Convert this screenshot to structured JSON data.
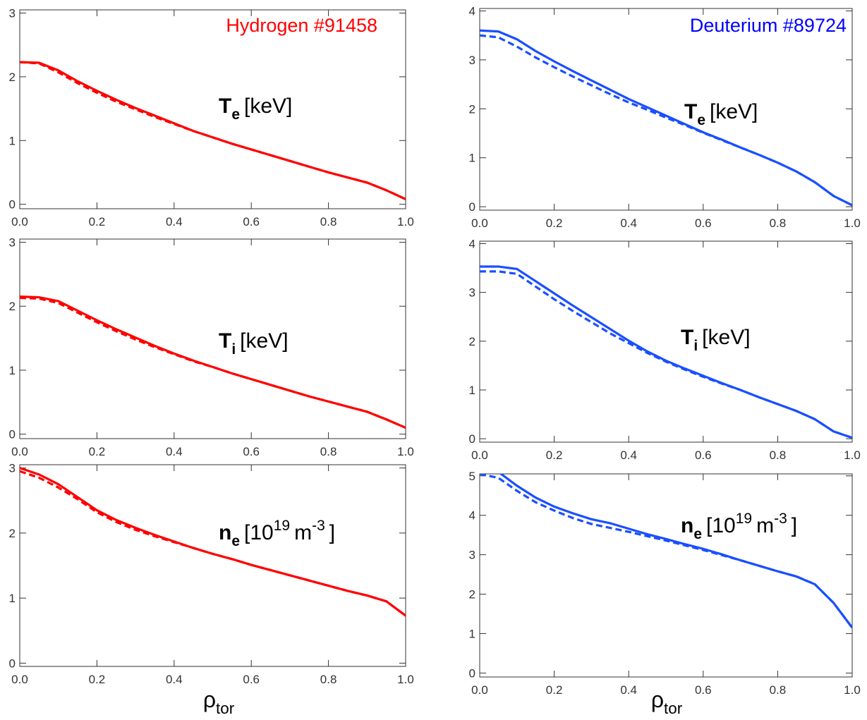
{
  "chart_data": [
    {
      "type": "line",
      "title": "Hydrogen #91458",
      "title_color": "#ff0000",
      "annotation": [
        {
          "text": "T",
          "style": "bold"
        },
        {
          "text": "e",
          "style": "bold-sub"
        },
        {
          "text": "[keV]",
          "style": "normal"
        }
      ],
      "x": [
        0,
        0.05,
        0.1,
        0.15,
        0.2,
        0.25,
        0.3,
        0.35,
        0.4,
        0.45,
        0.5,
        0.55,
        0.6,
        0.65,
        0.7,
        0.75,
        0.8,
        0.85,
        0.9,
        0.95,
        1.0
      ],
      "series": [
        {
          "color": "#ff0000",
          "dash": false,
          "values": [
            2.23,
            2.22,
            2.1,
            1.93,
            1.78,
            1.64,
            1.51,
            1.39,
            1.27,
            1.15,
            1.05,
            0.95,
            0.86,
            0.77,
            0.68,
            0.59,
            0.5,
            0.42,
            0.34,
            0.22,
            0.08
          ]
        },
        {
          "color": "#ff0000",
          "dash": true,
          "values": [
            2.23,
            2.21,
            2.07,
            1.9,
            1.75,
            1.61,
            1.49,
            1.37,
            1.26,
            1.15,
            1.05,
            0.95,
            0.86,
            0.77,
            0.68,
            0.59,
            0.5,
            0.42,
            0.34,
            0.22,
            0.08
          ]
        }
      ],
      "xlim": [
        0,
        1
      ],
      "ylim": [
        -0.07,
        3.05
      ],
      "xticks": [
        {
          "value": 0,
          "label": "0.0"
        },
        0.2,
        0.4,
        0.6,
        0.8,
        {
          "value": 1,
          "label": "1.0"
        }
      ],
      "yticks": [
        0,
        1,
        2,
        3
      ]
    },
    {
      "type": "line",
      "annotation": [
        {
          "text": "T",
          "style": "bold"
        },
        {
          "text": "i",
          "style": "bold-sub"
        },
        {
          "text": "[keV]",
          "style": "normal"
        }
      ],
      "x": [
        0,
        0.05,
        0.1,
        0.15,
        0.2,
        0.25,
        0.3,
        0.35,
        0.4,
        0.45,
        0.5,
        0.55,
        0.6,
        0.65,
        0.7,
        0.75,
        0.8,
        0.85,
        0.9,
        0.95,
        1.0
      ],
      "series": [
        {
          "color": "#ff0000",
          "dash": false,
          "values": [
            2.15,
            2.14,
            2.08,
            1.93,
            1.78,
            1.64,
            1.51,
            1.38,
            1.26,
            1.15,
            1.05,
            0.95,
            0.86,
            0.77,
            0.68,
            0.59,
            0.51,
            0.43,
            0.35,
            0.23,
            0.1
          ]
        },
        {
          "color": "#ff0000",
          "dash": true,
          "values": [
            2.13,
            2.12,
            2.05,
            1.9,
            1.75,
            1.61,
            1.48,
            1.36,
            1.25,
            1.14,
            1.05,
            0.95,
            0.86,
            0.77,
            0.68,
            0.59,
            0.51,
            0.43,
            0.35,
            0.23,
            0.1
          ]
        }
      ],
      "xlim": [
        0,
        1
      ],
      "ylim": [
        -0.07,
        3.05
      ],
      "xticks": [
        {
          "value": 0,
          "label": "0.0"
        },
        0.2,
        0.4,
        0.6,
        0.8,
        {
          "value": 1,
          "label": "1.0"
        }
      ],
      "yticks": [
        0,
        1,
        2,
        3
      ]
    },
    {
      "type": "line",
      "annotation": [
        {
          "text": "n",
          "style": "bold"
        },
        {
          "text": "e",
          "style": "bold-sub"
        },
        {
          "text": "[10",
          "style": "normal"
        },
        {
          "text": "19",
          "style": "sup"
        },
        {
          "text": "m",
          "style": "normal"
        },
        {
          "text": "-3",
          "style": "sup"
        },
        {
          "text": "]",
          "style": "normal"
        }
      ],
      "x": [
        0,
        0.05,
        0.1,
        0.15,
        0.2,
        0.25,
        0.3,
        0.35,
        0.4,
        0.45,
        0.5,
        0.55,
        0.6,
        0.65,
        0.7,
        0.75,
        0.8,
        0.85,
        0.9,
        0.95,
        1.0
      ],
      "series": [
        {
          "color": "#ff0000",
          "dash": false,
          "values": [
            3.0,
            2.9,
            2.75,
            2.55,
            2.35,
            2.2,
            2.08,
            1.97,
            1.87,
            1.77,
            1.68,
            1.6,
            1.51,
            1.43,
            1.35,
            1.27,
            1.19,
            1.11,
            1.04,
            0.95,
            0.73
          ]
        },
        {
          "color": "#ff0000",
          "dash": true,
          "values": [
            2.95,
            2.85,
            2.7,
            2.52,
            2.32,
            2.17,
            2.05,
            1.95,
            1.86,
            1.77,
            1.68,
            1.6,
            1.51,
            1.43,
            1.35,
            1.27,
            1.19,
            1.11,
            1.04,
            0.95,
            0.73
          ]
        }
      ],
      "xlim": [
        0,
        1
      ],
      "ylim": [
        -0.05,
        3.05
      ],
      "xticks": [
        {
          "value": 0,
          "label": "0.0"
        },
        0.2,
        0.4,
        0.6,
        0.8,
        {
          "value": 1,
          "label": "1.0"
        }
      ],
      "yticks": [
        0,
        1,
        2,
        3
      ],
      "x_label": [
        {
          "text": "ρ",
          "style": "normal"
        },
        {
          "text": "tor",
          "style": "sub"
        }
      ]
    },
    {
      "type": "line",
      "title": "Deuterium #89724",
      "title_color": "#0000ff",
      "annotation": [
        {
          "text": "T",
          "style": "bold"
        },
        {
          "text": "e",
          "style": "bold-sub"
        },
        {
          "text": "[keV]",
          "style": "normal"
        }
      ],
      "x": [
        0,
        0.05,
        0.1,
        0.15,
        0.2,
        0.25,
        0.3,
        0.35,
        0.4,
        0.45,
        0.5,
        0.55,
        0.6,
        0.65,
        0.7,
        0.75,
        0.8,
        0.85,
        0.9,
        0.95,
        1.0
      ],
      "series": [
        {
          "color": "#1a4fff",
          "dash": false,
          "values": [
            3.6,
            3.58,
            3.42,
            3.18,
            2.97,
            2.77,
            2.58,
            2.39,
            2.2,
            2.03,
            1.86,
            1.69,
            1.52,
            1.37,
            1.21,
            1.06,
            0.9,
            0.72,
            0.5,
            0.22,
            0.03
          ]
        },
        {
          "color": "#1a4fff",
          "dash": true,
          "values": [
            3.5,
            3.46,
            3.27,
            3.05,
            2.85,
            2.66,
            2.48,
            2.3,
            2.13,
            1.98,
            1.82,
            1.67,
            1.51,
            1.36,
            1.21,
            1.06,
            0.9,
            0.72,
            0.5,
            0.22,
            0.03
          ]
        }
      ],
      "xlim": [
        0,
        1
      ],
      "ylim": [
        -0.07,
        4.05
      ],
      "xticks": [
        {
          "value": 0,
          "label": "0.0"
        },
        0.2,
        0.4,
        0.6,
        0.8,
        {
          "value": 1,
          "label": "1.0"
        }
      ],
      "yticks": [
        0,
        1,
        2,
        3,
        4
      ]
    },
    {
      "type": "line",
      "annotation": [
        {
          "text": "T",
          "style": "bold"
        },
        {
          "text": "i",
          "style": "bold-sub"
        },
        {
          "text": "[keV]",
          "style": "normal"
        }
      ],
      "x": [
        0,
        0.05,
        0.1,
        0.15,
        0.2,
        0.25,
        0.3,
        0.35,
        0.4,
        0.45,
        0.5,
        0.55,
        0.6,
        0.65,
        0.7,
        0.75,
        0.8,
        0.85,
        0.9,
        0.95,
        1.0
      ],
      "series": [
        {
          "color": "#1a4fff",
          "dash": false,
          "values": [
            3.53,
            3.53,
            3.48,
            3.23,
            2.98,
            2.73,
            2.49,
            2.25,
            2.01,
            1.79,
            1.6,
            1.44,
            1.29,
            1.14,
            1.0,
            0.85,
            0.71,
            0.57,
            0.4,
            0.15,
            0.02
          ]
        },
        {
          "color": "#1a4fff",
          "dash": true,
          "values": [
            3.43,
            3.43,
            3.38,
            3.12,
            2.86,
            2.62,
            2.39,
            2.16,
            1.96,
            1.76,
            1.58,
            1.42,
            1.27,
            1.13,
            1.0,
            0.85,
            0.71,
            0.57,
            0.4,
            0.15,
            0.02
          ]
        }
      ],
      "xlim": [
        0,
        1
      ],
      "ylim": [
        -0.07,
        4.05
      ],
      "xticks": [
        {
          "value": 0,
          "label": "0.0"
        },
        0.2,
        0.4,
        0.6,
        0.8,
        {
          "value": 1,
          "label": "1.0"
        }
      ],
      "yticks": [
        0,
        1,
        2,
        3,
        4
      ]
    },
    {
      "type": "line",
      "annotation": [
        {
          "text": "n",
          "style": "bold"
        },
        {
          "text": "e",
          "style": "bold-sub"
        },
        {
          "text": "[10",
          "style": "normal"
        },
        {
          "text": "19",
          "style": "sup"
        },
        {
          "text": "m",
          "style": "normal"
        },
        {
          "text": "-3",
          "style": "sup"
        },
        {
          "text": "]",
          "style": "normal"
        }
      ],
      "x": [
        0,
        0.05,
        0.1,
        0.15,
        0.2,
        0.25,
        0.3,
        0.35,
        0.4,
        0.45,
        0.5,
        0.55,
        0.6,
        0.65,
        0.7,
        0.75,
        0.8,
        0.85,
        0.9,
        0.95,
        1.0
      ],
      "series": [
        {
          "color": "#1a4fff",
          "dash": false,
          "values": [
            5.15,
            5.1,
            4.75,
            4.45,
            4.22,
            4.05,
            3.9,
            3.8,
            3.66,
            3.52,
            3.4,
            3.27,
            3.15,
            3.01,
            2.86,
            2.72,
            2.58,
            2.45,
            2.25,
            1.78,
            1.15
          ]
        },
        {
          "color": "#1a4fff",
          "dash": true,
          "values": [
            5.05,
            4.95,
            4.62,
            4.33,
            4.12,
            3.93,
            3.78,
            3.68,
            3.58,
            3.47,
            3.36,
            3.24,
            3.12,
            2.99,
            2.86,
            2.72,
            2.58,
            2.45,
            2.25,
            1.78,
            1.15
          ]
        }
      ],
      "xlim": [
        0,
        1
      ],
      "ylim": [
        -0.1,
        5.05
      ],
      "xticks": [
        {
          "value": 0,
          "label": "0.0"
        },
        0.2,
        0.4,
        0.6,
        0.8,
        {
          "value": 1,
          "label": "1.0"
        }
      ],
      "yticks": [
        0,
        1,
        2,
        3,
        4,
        5
      ],
      "x_label": [
        {
          "text": "ρ",
          "style": "normal"
        },
        {
          "text": "tor",
          "style": "sub"
        }
      ]
    }
  ]
}
